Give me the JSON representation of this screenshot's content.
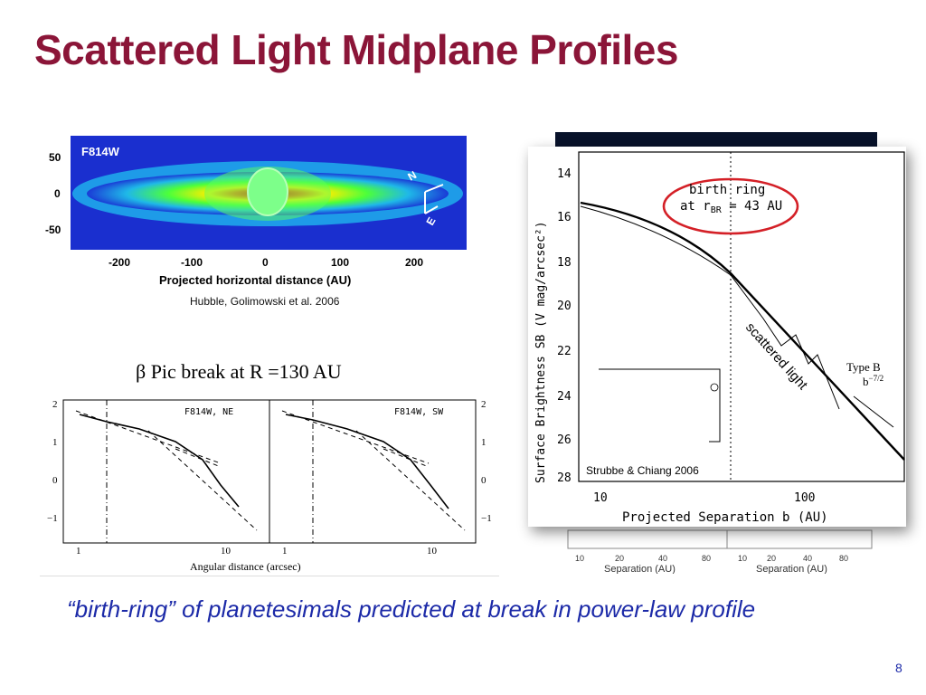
{
  "slide": {
    "title": "Scattered Light Midplane Profiles",
    "page_number": "8",
    "quote": "“birth-ring” of planetesimals predicted at break in power-law profile",
    "pic_break": "β Pic break at R =130 AU"
  },
  "hubble": {
    "band": "F814W",
    "caption": "Hubble, Golimowski et al. 2006",
    "xlabel": "Projected horizontal distance (AU)",
    "xticks": [
      "-200",
      "-100",
      "0",
      "100",
      "200"
    ],
    "yticks": [
      "50",
      "0",
      "-50"
    ],
    "compass": {
      "north": "N",
      "east": "E"
    }
  },
  "profiles": {
    "xlabel": "Angular distance (arcsec)",
    "left_panel": "F814W, NE",
    "right_panel": "F814W, SW",
    "yticks": [
      "2",
      "1",
      "0",
      "−1"
    ],
    "xticks": [
      "1",
      "10"
    ]
  },
  "strubbe": {
    "caption": "Strubbe & Chiang 2006",
    "ylabel": "Surface Brightness SB (V mag/arcsec²)",
    "xlabel": "Projected Separation b (AU)",
    "yticks": [
      "14",
      "16",
      "18",
      "20",
      "22",
      "24",
      "26",
      "28"
    ],
    "xticks": [
      "10",
      "100"
    ],
    "birth_ring_line1": "birth ring",
    "birth_ring_line2": "at r",
    "birth_ring_sub": "BR",
    "birth_ring_value": " = 43 AU",
    "scattered_label": "scattered light",
    "type_b": "Type B",
    "type_b_law": "b",
    "type_b_exp": "−7/2",
    "annotation_color": "#d42027"
  },
  "back_panel": {
    "xlabel_left": "Separation (AU)",
    "xlabel_right": "Separation (AU)",
    "xticks_left": [
      "10",
      "20",
      "40",
      "80"
    ],
    "xticks_right": [
      "10",
      "20",
      "40",
      "80"
    ]
  }
}
